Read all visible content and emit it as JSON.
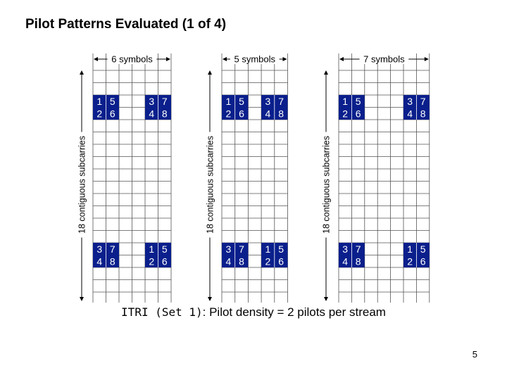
{
  "title": "Pilot Patterns Evaluated (1 of 4)",
  "caption_prefix": "ITRI (Set 1)",
  "caption_suffix": ": Pilot density = 2 pilots per stream",
  "page_number": "5",
  "colors": {
    "pilot_fill": "#0a1f8c",
    "pilot_text": "#ffffff",
    "grid": "#555555",
    "arrow": "#000000"
  },
  "panels": [
    {
      "symbols_label": "6 symbols",
      "subcarriers_label": "18 contiguous subcarries",
      "columns": 6,
      "top_pilots": [
        [
          "1",
          "5"
        ],
        [
          "2",
          "6"
        ]
      ],
      "top_pilots_right": [
        [
          "3",
          "7"
        ],
        [
          "4",
          "8"
        ]
      ],
      "bottom_pilots": [
        [
          "3",
          "7"
        ],
        [
          "4",
          "8"
        ]
      ],
      "bottom_pilots_right": [
        [
          "1",
          "5"
        ],
        [
          "2",
          "6"
        ]
      ]
    },
    {
      "symbols_label": "5 symbols",
      "subcarriers_label": "18 contiguous subcarries",
      "columns": 5,
      "top_pilots": [
        [
          "1",
          "5"
        ],
        [
          "2",
          "6"
        ]
      ],
      "top_pilots_right": [
        [
          "3",
          "7"
        ],
        [
          "4",
          "8"
        ]
      ],
      "bottom_pilots": [
        [
          "3",
          "7"
        ],
        [
          "4",
          "8"
        ]
      ],
      "bottom_pilots_right": [
        [
          "1",
          "5"
        ],
        [
          "2",
          "6"
        ]
      ]
    },
    {
      "symbols_label": "7 symbols",
      "subcarriers_label": "18 contiguous subcarries",
      "columns": 7,
      "top_pilots": [
        [
          "1",
          "5"
        ],
        [
          "2",
          "6"
        ]
      ],
      "top_pilots_right": [
        [
          "3",
          "7"
        ],
        [
          "4",
          "8"
        ]
      ],
      "bottom_pilots": [
        [
          "3",
          "7"
        ],
        [
          "4",
          "8"
        ]
      ],
      "bottom_pilots_right": [
        [
          "1",
          "5"
        ],
        [
          "2",
          "6"
        ]
      ]
    }
  ]
}
